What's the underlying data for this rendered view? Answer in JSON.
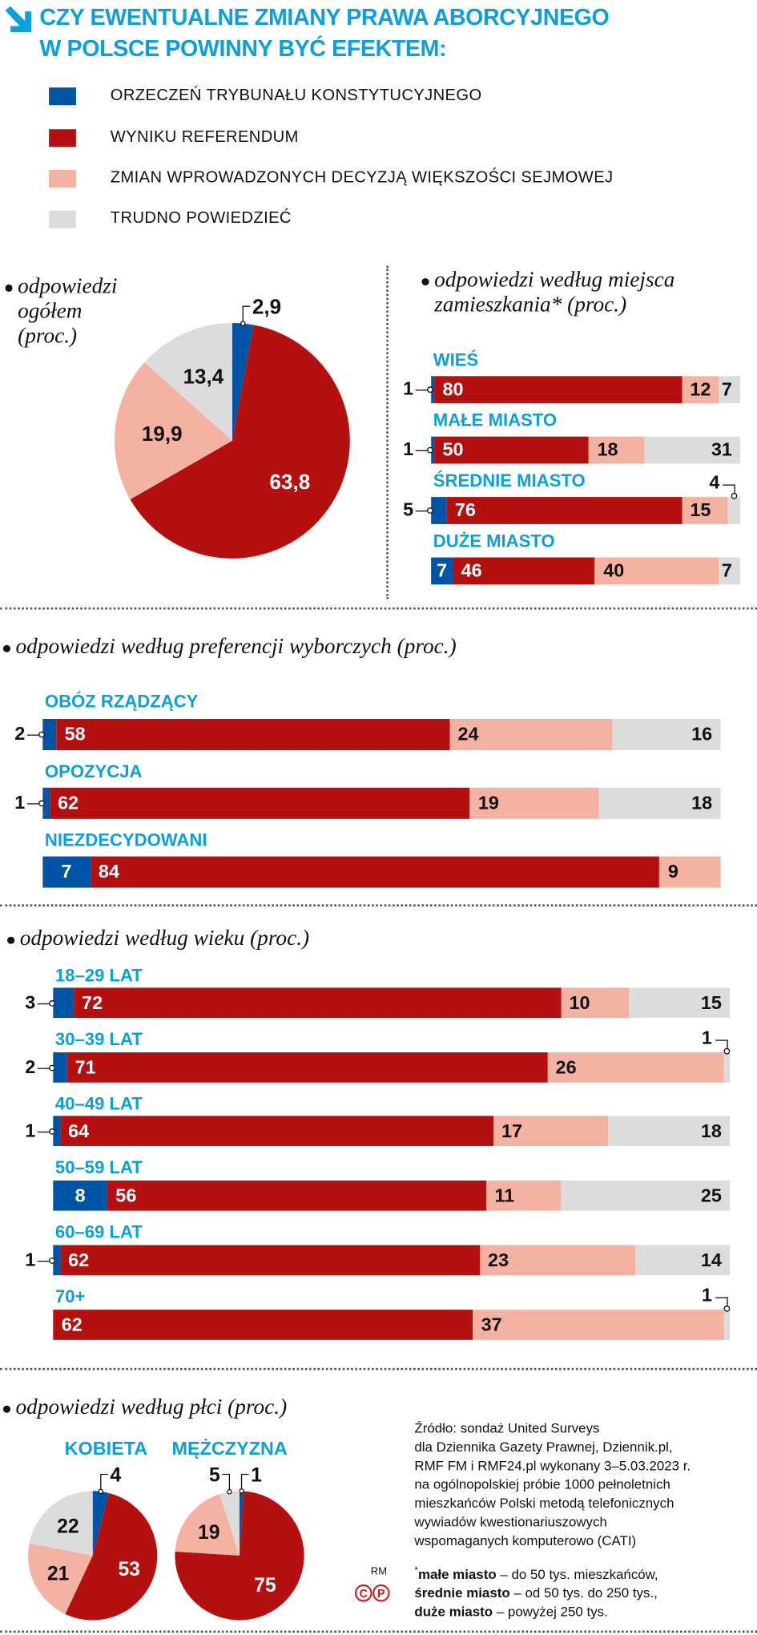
{
  "title": {
    "line1": "CZY EWENTUALNE ZMIANY PRAWA ABORCYJNEGO",
    "line2": "W POLSCE POWINNY BYĆ EFEKTEM:",
    "icon": "arrow-down-right-icon"
  },
  "legend": [
    {
      "label": "ORZECZEŃ TRYBUNAŁU KONSTYTUCYJNEGO",
      "color": "#0054a6"
    },
    {
      "label": "WYNIKU REFERENDUM",
      "color": "#b51010"
    },
    {
      "label": "ZMIAN WPROWADZONYCH DECYZJĄ WIĘKSZOŚCI SEJMOWEJ",
      "color": "#f4b2a2"
    },
    {
      "label": "TRUDNO POWIEDZIEĆ",
      "color": "#dcdcdc"
    }
  ],
  "chart_data": [
    {
      "type": "pie",
      "title_lines": [
        "odpowiedzi",
        "ogółem",
        "(proc.)"
      ],
      "values": [
        2.9,
        63.8,
        19.9,
        13.4
      ],
      "labels": [
        "2,9",
        "63,8",
        "19,9",
        "13,4"
      ]
    },
    {
      "type": "bar",
      "stacked": true,
      "orientation": "horizontal",
      "title_lines": [
        "odpowiedzi według miejsca",
        "zamieszkania* (proc.)"
      ],
      "categories": [
        "WIEŚ",
        "MAŁE MIASTO",
        "ŚREDNIE MIASTO",
        "DUŻE MIASTO"
      ],
      "series": [
        {
          "name": "ORZECZEŃ TRYBUNAŁU KONSTYTUCYJNEGO",
          "values": [
            1,
            1,
            5,
            7
          ]
        },
        {
          "name": "WYNIKU REFERENDUM",
          "values": [
            80,
            50,
            76,
            46
          ]
        },
        {
          "name": "ZMIAN WPROWADZONYCH DECYZJĄ WIĘKSZOŚCI SEJMOWEJ",
          "values": [
            12,
            18,
            15,
            40
          ]
        },
        {
          "name": "TRUDNO POWIEDZIEĆ",
          "values": [
            7,
            31,
            4,
            7
          ]
        }
      ],
      "xlim": [
        0,
        100
      ]
    },
    {
      "type": "bar",
      "stacked": true,
      "orientation": "horizontal",
      "title_lines": [
        "odpowiedzi według preferencji wyborczych (proc.)"
      ],
      "categories": [
        "OBÓZ RZĄDZĄCY",
        "OPOZYCJA",
        "NIEZDECYDOWANI"
      ],
      "series": [
        {
          "name": "ORZECZEŃ TRYBUNAŁU KONSTYTUCYJNEGO",
          "values": [
            2,
            1,
            7
          ]
        },
        {
          "name": "WYNIKU REFERENDUM",
          "values": [
            58,
            62,
            84
          ]
        },
        {
          "name": "ZMIAN WPROWADZONYCH DECYZJĄ WIĘKSZOŚCI SEJMOWEJ",
          "values": [
            24,
            19,
            9
          ]
        },
        {
          "name": "TRUDNO POWIEDZIEĆ",
          "values": [
            16,
            18,
            0
          ]
        }
      ],
      "xlim": [
        0,
        100
      ]
    },
    {
      "type": "bar",
      "stacked": true,
      "orientation": "horizontal",
      "title_lines": [
        "odpowiedzi według wieku (proc.)"
      ],
      "categories": [
        "18–29 LAT",
        "30–39 LAT",
        "40–49 LAT",
        "50–59 LAT",
        "60–69 LAT",
        "70+"
      ],
      "series": [
        {
          "name": "ORZECZEŃ TRYBUNAŁU KONSTYTUCYJNEGO",
          "values": [
            3,
            2,
            1,
            8,
            1,
            0
          ]
        },
        {
          "name": "WYNIKU REFERENDUM",
          "values": [
            72,
            71,
            64,
            56,
            62,
            62
          ]
        },
        {
          "name": "ZMIAN WPROWADZONYCH DECYZJĄ WIĘKSZOŚCI SEJMOWEJ",
          "values": [
            10,
            26,
            17,
            11,
            23,
            37
          ]
        },
        {
          "name": "TRUDNO POWIEDZIEĆ",
          "values": [
            15,
            1,
            18,
            25,
            14,
            1
          ]
        }
      ],
      "xlim": [
        0,
        100
      ]
    },
    {
      "type": "pie",
      "group_title_lines": [
        "odpowiedzi według płci (proc.)"
      ],
      "title_lines": [
        "KOBIETA"
      ],
      "values": [
        4,
        53,
        21,
        22
      ],
      "labels": [
        "4",
        "53",
        "21",
        "22"
      ]
    },
    {
      "type": "pie",
      "title_lines": [
        "MĘŻCZYZNA"
      ],
      "values": [
        1,
        75,
        19,
        5
      ],
      "labels": [
        "1",
        "75",
        "19",
        "5"
      ]
    }
  ],
  "source": {
    "lines": [
      "Źródło: sondaż United Surveys",
      "dla Dziennika Gazety Prawnej, Dziennik.pl,",
      "RMF FM i RMF24.pl wykonany 3–5.03.2023 r.",
      "na ogólnopolskiej próbie 1000 pełnoletnich",
      "mieszkańców Polski metodą telefonicznych",
      "wywiadów kwestionariuszowych",
      "wspomaganych komputerowo (CATI)"
    ]
  },
  "notes": {
    "asterisk": "*",
    "items": [
      {
        "term": "małe miasto",
        "desc": " – do 50 tys. mieszkańców,"
      },
      {
        "term": "średnie miasto",
        "desc": " – od 50 tys. do 250 tys.,"
      },
      {
        "term": "duże miasto",
        "desc": " – powyżej 250 tys."
      }
    ]
  },
  "credit": {
    "author": "RM",
    "logo": "CP"
  }
}
